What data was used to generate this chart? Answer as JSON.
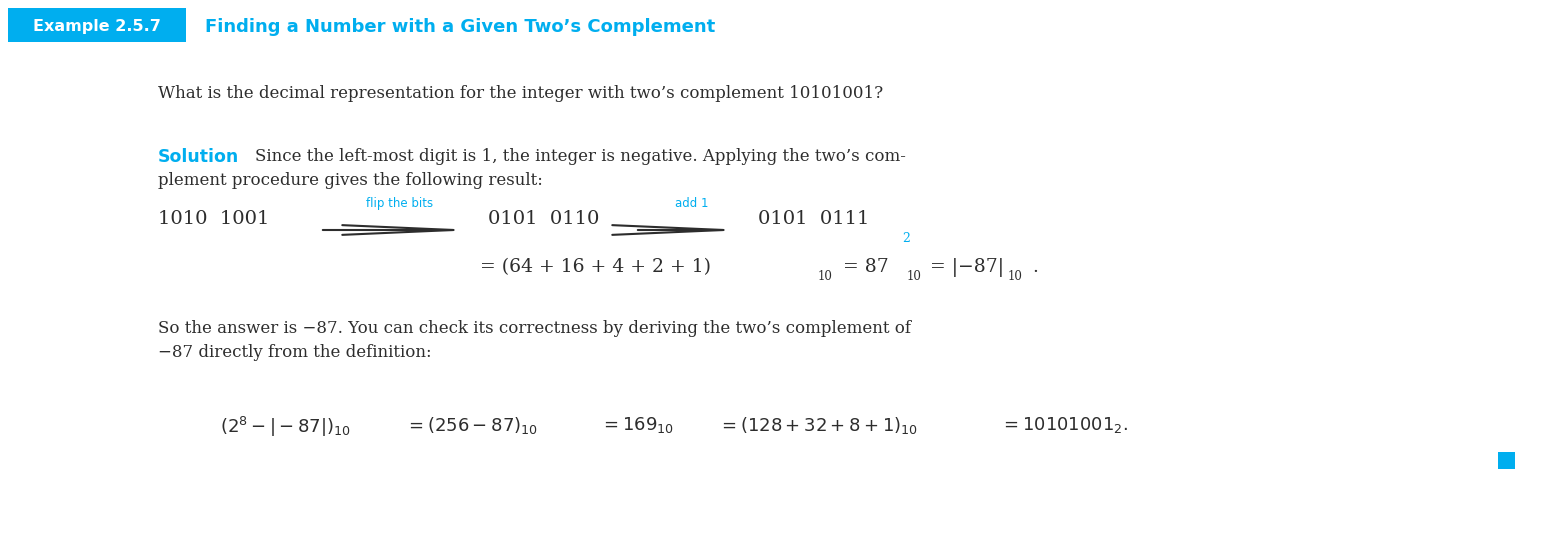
{
  "bg_color": "#ffffff",
  "cyan_color": "#00AEEF",
  "dark_text": "#2d2d2d",
  "example_label": "Example 2.5.7",
  "title": "Finding a Number with a Given Two’s Complement",
  "question": "What is the decimal representation for the integer with two’s complement 10101001?",
  "solution_label": "Solution",
  "sol_line1": "Since the left-most digit is 1, the integer is negative. Applying the two’s com-",
  "sol_line2": "plement procedure gives the following result:",
  "bottom_text1": "So the answer is −87. You can check its correctness by deriving the two’s complement of",
  "bottom_text2": "−87 directly from the definition:",
  "fig_width": 15.41,
  "fig_height": 5.4,
  "dpi": 100
}
